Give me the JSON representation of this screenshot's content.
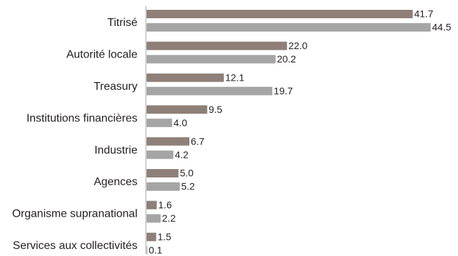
{
  "chart_data": {
    "type": "bar",
    "orientation": "horizontal",
    "categories": [
      "Titrisé",
      "Autorité locale",
      "Treasury",
      "Institutions financières",
      "Industrie",
      "Agences",
      "Organisme supranational",
      "Services aux collectivités"
    ],
    "series": [
      {
        "values": [
          41.7,
          22.0,
          12.1,
          9.5,
          6.7,
          5.0,
          1.6,
          1.5
        ],
        "labels": [
          "41.7",
          "22.0",
          "12.1",
          "9.5",
          "6.7",
          "5.0",
          "1.6",
          "1.5"
        ],
        "color": "#8e8078"
      },
      {
        "values": [
          44.5,
          20.2,
          19.7,
          4.0,
          4.2,
          5.2,
          2.2,
          0.1
        ],
        "labels": [
          "44.5",
          "20.2",
          "19.7",
          "4.0",
          "4.2",
          "5.2",
          "2.2",
          "0.1"
        ],
        "color": "#a5a5a5"
      }
    ],
    "xlim": [
      0,
      48
    ],
    "grid": false,
    "legend": "none",
    "axis_color": "#a6a6a6"
  }
}
